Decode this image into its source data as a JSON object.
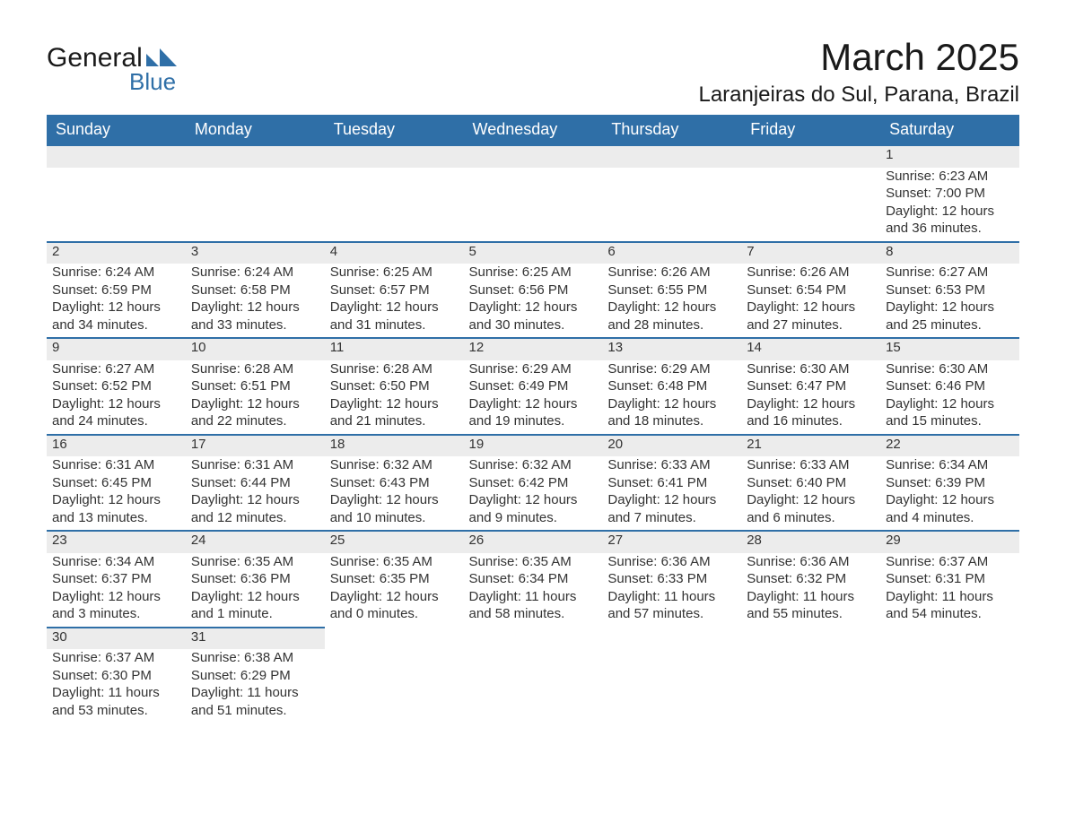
{
  "logo": {
    "text_top": "General",
    "text_bottom": "Blue",
    "accent_color": "#2f6fa7"
  },
  "title": {
    "month": "March 2025",
    "location": "Laranjeiras do Sul, Parana, Brazil"
  },
  "header": {
    "bg_color": "#2f6fa7",
    "text_color": "#ffffff",
    "days": [
      "Sunday",
      "Monday",
      "Tuesday",
      "Wednesday",
      "Thursday",
      "Friday",
      "Saturday"
    ]
  },
  "row_divider_color": "#2f6fa7",
  "daynum_bg_color": "#ececec",
  "text_color": "#333333",
  "weeks": [
    [
      null,
      null,
      null,
      null,
      null,
      null,
      {
        "n": "1",
        "sr": "Sunrise: 6:23 AM",
        "ss": "Sunset: 7:00 PM",
        "d1": "Daylight: 12 hours",
        "d2": "and 36 minutes."
      }
    ],
    [
      {
        "n": "2",
        "sr": "Sunrise: 6:24 AM",
        "ss": "Sunset: 6:59 PM",
        "d1": "Daylight: 12 hours",
        "d2": "and 34 minutes."
      },
      {
        "n": "3",
        "sr": "Sunrise: 6:24 AM",
        "ss": "Sunset: 6:58 PM",
        "d1": "Daylight: 12 hours",
        "d2": "and 33 minutes."
      },
      {
        "n": "4",
        "sr": "Sunrise: 6:25 AM",
        "ss": "Sunset: 6:57 PM",
        "d1": "Daylight: 12 hours",
        "d2": "and 31 minutes."
      },
      {
        "n": "5",
        "sr": "Sunrise: 6:25 AM",
        "ss": "Sunset: 6:56 PM",
        "d1": "Daylight: 12 hours",
        "d2": "and 30 minutes."
      },
      {
        "n": "6",
        "sr": "Sunrise: 6:26 AM",
        "ss": "Sunset: 6:55 PM",
        "d1": "Daylight: 12 hours",
        "d2": "and 28 minutes."
      },
      {
        "n": "7",
        "sr": "Sunrise: 6:26 AM",
        "ss": "Sunset: 6:54 PM",
        "d1": "Daylight: 12 hours",
        "d2": "and 27 minutes."
      },
      {
        "n": "8",
        "sr": "Sunrise: 6:27 AM",
        "ss": "Sunset: 6:53 PM",
        "d1": "Daylight: 12 hours",
        "d2": "and 25 minutes."
      }
    ],
    [
      {
        "n": "9",
        "sr": "Sunrise: 6:27 AM",
        "ss": "Sunset: 6:52 PM",
        "d1": "Daylight: 12 hours",
        "d2": "and 24 minutes."
      },
      {
        "n": "10",
        "sr": "Sunrise: 6:28 AM",
        "ss": "Sunset: 6:51 PM",
        "d1": "Daylight: 12 hours",
        "d2": "and 22 minutes."
      },
      {
        "n": "11",
        "sr": "Sunrise: 6:28 AM",
        "ss": "Sunset: 6:50 PM",
        "d1": "Daylight: 12 hours",
        "d2": "and 21 minutes."
      },
      {
        "n": "12",
        "sr": "Sunrise: 6:29 AM",
        "ss": "Sunset: 6:49 PM",
        "d1": "Daylight: 12 hours",
        "d2": "and 19 minutes."
      },
      {
        "n": "13",
        "sr": "Sunrise: 6:29 AM",
        "ss": "Sunset: 6:48 PM",
        "d1": "Daylight: 12 hours",
        "d2": "and 18 minutes."
      },
      {
        "n": "14",
        "sr": "Sunrise: 6:30 AM",
        "ss": "Sunset: 6:47 PM",
        "d1": "Daylight: 12 hours",
        "d2": "and 16 minutes."
      },
      {
        "n": "15",
        "sr": "Sunrise: 6:30 AM",
        "ss": "Sunset: 6:46 PM",
        "d1": "Daylight: 12 hours",
        "d2": "and 15 minutes."
      }
    ],
    [
      {
        "n": "16",
        "sr": "Sunrise: 6:31 AM",
        "ss": "Sunset: 6:45 PM",
        "d1": "Daylight: 12 hours",
        "d2": "and 13 minutes."
      },
      {
        "n": "17",
        "sr": "Sunrise: 6:31 AM",
        "ss": "Sunset: 6:44 PM",
        "d1": "Daylight: 12 hours",
        "d2": "and 12 minutes."
      },
      {
        "n": "18",
        "sr": "Sunrise: 6:32 AM",
        "ss": "Sunset: 6:43 PM",
        "d1": "Daylight: 12 hours",
        "d2": "and 10 minutes."
      },
      {
        "n": "19",
        "sr": "Sunrise: 6:32 AM",
        "ss": "Sunset: 6:42 PM",
        "d1": "Daylight: 12 hours",
        "d2": "and 9 minutes."
      },
      {
        "n": "20",
        "sr": "Sunrise: 6:33 AM",
        "ss": "Sunset: 6:41 PM",
        "d1": "Daylight: 12 hours",
        "d2": "and 7 minutes."
      },
      {
        "n": "21",
        "sr": "Sunrise: 6:33 AM",
        "ss": "Sunset: 6:40 PM",
        "d1": "Daylight: 12 hours",
        "d2": "and 6 minutes."
      },
      {
        "n": "22",
        "sr": "Sunrise: 6:34 AM",
        "ss": "Sunset: 6:39 PM",
        "d1": "Daylight: 12 hours",
        "d2": "and 4 minutes."
      }
    ],
    [
      {
        "n": "23",
        "sr": "Sunrise: 6:34 AM",
        "ss": "Sunset: 6:37 PM",
        "d1": "Daylight: 12 hours",
        "d2": "and 3 minutes."
      },
      {
        "n": "24",
        "sr": "Sunrise: 6:35 AM",
        "ss": "Sunset: 6:36 PM",
        "d1": "Daylight: 12 hours",
        "d2": "and 1 minute."
      },
      {
        "n": "25",
        "sr": "Sunrise: 6:35 AM",
        "ss": "Sunset: 6:35 PM",
        "d1": "Daylight: 12 hours",
        "d2": "and 0 minutes."
      },
      {
        "n": "26",
        "sr": "Sunrise: 6:35 AM",
        "ss": "Sunset: 6:34 PM",
        "d1": "Daylight: 11 hours",
        "d2": "and 58 minutes."
      },
      {
        "n": "27",
        "sr": "Sunrise: 6:36 AM",
        "ss": "Sunset: 6:33 PM",
        "d1": "Daylight: 11 hours",
        "d2": "and 57 minutes."
      },
      {
        "n": "28",
        "sr": "Sunrise: 6:36 AM",
        "ss": "Sunset: 6:32 PM",
        "d1": "Daylight: 11 hours",
        "d2": "and 55 minutes."
      },
      {
        "n": "29",
        "sr": "Sunrise: 6:37 AM",
        "ss": "Sunset: 6:31 PM",
        "d1": "Daylight: 11 hours",
        "d2": "and 54 minutes."
      }
    ],
    [
      {
        "n": "30",
        "sr": "Sunrise: 6:37 AM",
        "ss": "Sunset: 6:30 PM",
        "d1": "Daylight: 11 hours",
        "d2": "and 53 minutes."
      },
      {
        "n": "31",
        "sr": "Sunrise: 6:38 AM",
        "ss": "Sunset: 6:29 PM",
        "d1": "Daylight: 11 hours",
        "d2": "and 51 minutes."
      },
      null,
      null,
      null,
      null,
      null
    ]
  ]
}
